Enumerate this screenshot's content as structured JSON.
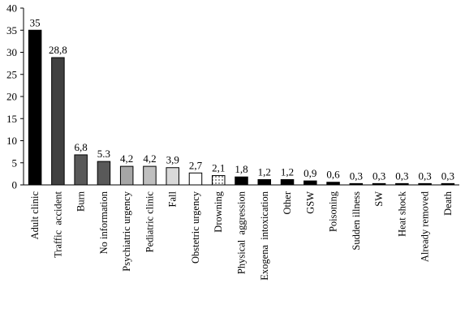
{
  "chart_data": {
    "type": "bar",
    "title": "",
    "xlabel": "",
    "ylabel": "",
    "ylim": [
      0,
      40
    ],
    "yticks": [
      "0",
      "5",
      "10",
      "15",
      "20",
      "25",
      "30",
      "35",
      "40"
    ],
    "grid": false,
    "legend": "none",
    "categories": [
      "Adult clinic",
      "Traffic  accident",
      "Burn",
      "No information",
      "Psychiatric urgency",
      "Pediatric clinic",
      "Fall",
      "Obstetric urgency",
      "Drowning",
      "Physical  aggression",
      "Exogena  intoxication",
      "Other",
      "GSW",
      "Poisoning",
      "Sudden illness",
      "SW",
      "Heat shock",
      "Already removed",
      "Death"
    ],
    "values": [
      35,
      28.8,
      6.8,
      5.3,
      4.2,
      4.2,
      3.9,
      2.7,
      2.1,
      1.8,
      1.2,
      1.2,
      0.9,
      0.6,
      0.3,
      0.3,
      0.3,
      0.3,
      0.3
    ],
    "value_labels": [
      "35",
      "28,8",
      "6,8",
      "5.3",
      "4,2",
      "4,2",
      "3,9",
      "2,7",
      "2,1",
      "1,8",
      "1,2",
      "1,2",
      "0,9",
      "0,6",
      "0,3",
      "0,3",
      "0,3",
      "0,3",
      "0,3"
    ],
    "bar_fills": [
      "#000000",
      "#404040",
      "#595959",
      "#595959",
      "#a6a6a6",
      "#bfbfbf",
      "#d9d9d9",
      "#ffffff",
      "dotted",
      "#000000",
      "#000000",
      "#000000",
      "#000000",
      "#000000",
      "#000000",
      "#000000",
      "#000000",
      "#000000",
      "#000000"
    ]
  }
}
